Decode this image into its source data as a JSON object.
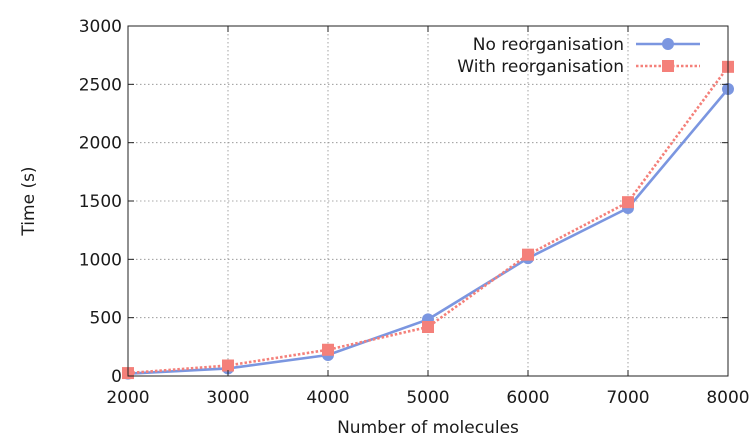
{
  "chart_data": {
    "type": "line",
    "title": "",
    "xlabel": "Number of molecules",
    "ylabel": "Time (s)",
    "x": [
      2000,
      3000,
      4000,
      5000,
      6000,
      7000,
      8000
    ],
    "xlim": [
      2000,
      8000
    ],
    "ylim": [
      0,
      3000
    ],
    "xticks": [
      2000,
      3000,
      4000,
      5000,
      6000,
      7000,
      8000
    ],
    "yticks": [
      0,
      500,
      1000,
      1500,
      2000,
      2500,
      3000
    ],
    "grid": true,
    "legend_position": "top-right",
    "series": [
      {
        "name": "No reorganisation",
        "values": [
          20,
          65,
          180,
          485,
          1010,
          1440,
          2460
        ],
        "color": "#7b96e0",
        "marker": "circle",
        "line_style": "solid"
      },
      {
        "name": "With reorganisation",
        "values": [
          25,
          90,
          225,
          420,
          1040,
          1490,
          2650
        ],
        "color": "#f4807a",
        "marker": "square",
        "line_style": "dotted"
      }
    ]
  }
}
